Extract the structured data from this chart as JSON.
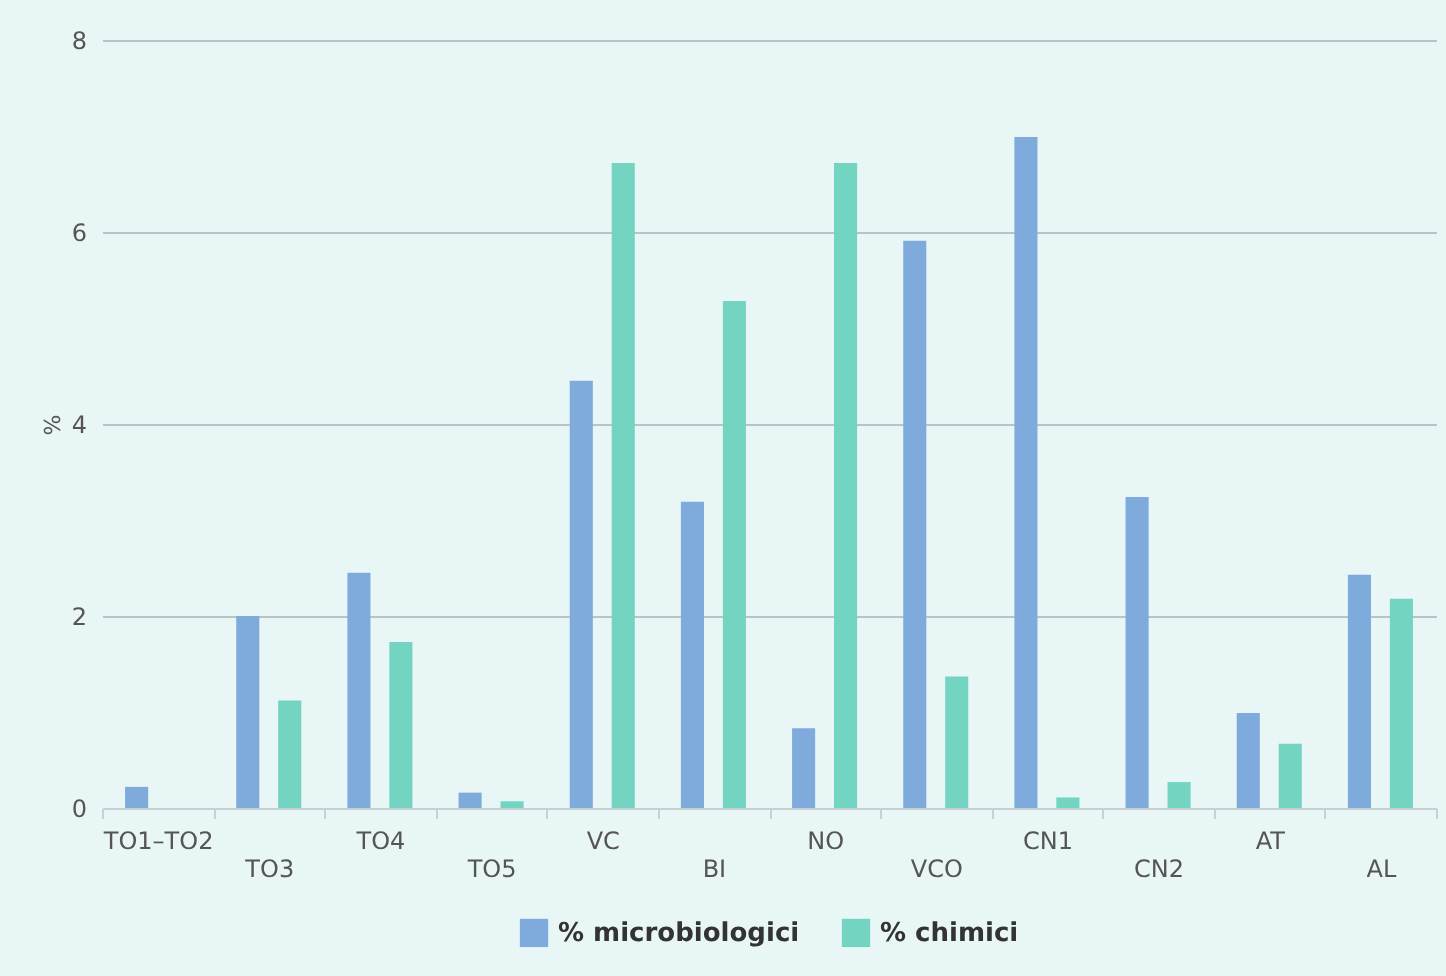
{
  "chart_data": {
    "type": "bar",
    "ylabel": "%",
    "categories": [
      "TO1–TO2",
      "TO3",
      "TO4",
      "TO5",
      "VC",
      "BI",
      "NO",
      "VCO",
      "CN1",
      "CN2",
      "AT",
      "AL"
    ],
    "series": [
      {
        "name": "% microbiologici",
        "color": "#7faadc",
        "values": [
          0.22,
          2.0,
          2.45,
          0.16,
          4.45,
          3.19,
          0.83,
          5.91,
          6.99,
          3.24,
          0.99,
          2.43
        ]
      },
      {
        "name": "% chimici",
        "color": "#72d4c1",
        "values": [
          null,
          1.12,
          1.73,
          0.07,
          6.72,
          5.28,
          6.72,
          1.37,
          0.11,
          0.27,
          0.67,
          2.18
        ]
      }
    ],
    "ylim": [
      0,
      8
    ],
    "yticks": [
      0,
      2,
      4,
      6,
      8
    ],
    "grid": "y",
    "legend": "bottom"
  }
}
